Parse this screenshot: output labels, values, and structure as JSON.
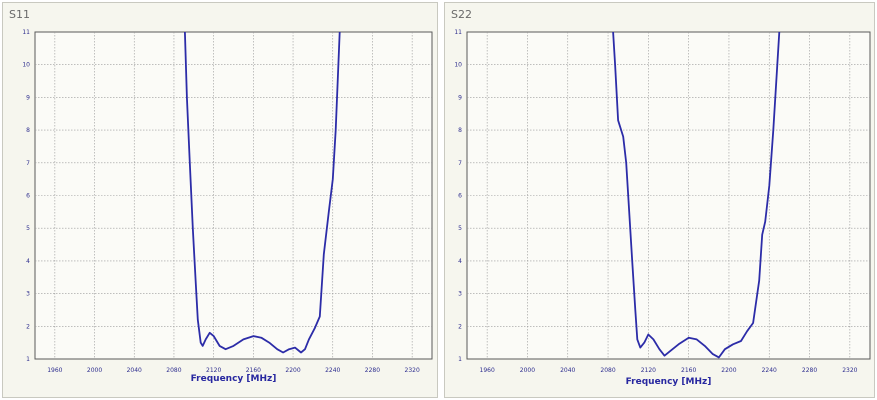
{
  "chart_data": [
    {
      "type": "line",
      "title": "S11",
      "xlabel": "Frequency [MHz]",
      "ylabel": "",
      "xlim": [
        1940,
        2340
      ],
      "ylim": [
        1,
        11
      ],
      "grid": true,
      "x_ticks": [
        "1960",
        "2000",
        "2040",
        "2080",
        "2120",
        "2160",
        "2200",
        "2240",
        "2280",
        "2320"
      ],
      "y_ticks": [
        "11",
        "10",
        "9",
        "8",
        "7",
        "6",
        "5",
        "4",
        "3",
        "2",
        "1"
      ],
      "line_color": "#2c2ca8",
      "series": [
        {
          "points": [
            [
              2091,
              11
            ],
            [
              2093,
              9
            ],
            [
              2096,
              7
            ],
            [
              2099,
              5
            ],
            [
              2102,
              3.3
            ],
            [
              2104,
              2.2
            ],
            [
              2107,
              1.5
            ],
            [
              2109,
              1.4
            ],
            [
              2112,
              1.6
            ],
            [
              2116,
              1.8
            ],
            [
              2120,
              1.7
            ],
            [
              2126,
              1.4
            ],
            [
              2132,
              1.3
            ],
            [
              2140,
              1.4
            ],
            [
              2150,
              1.6
            ],
            [
              2160,
              1.7
            ],
            [
              2168,
              1.65
            ],
            [
              2176,
              1.5
            ],
            [
              2184,
              1.3
            ],
            [
              2190,
              1.2
            ],
            [
              2196,
              1.3
            ],
            [
              2202,
              1.35
            ],
            [
              2208,
              1.2
            ],
            [
              2212,
              1.3
            ],
            [
              2216,
              1.6
            ],
            [
              2222,
              1.95
            ],
            [
              2227,
              2.3
            ],
            [
              2231,
              4.2
            ],
            [
              2236,
              5.5
            ],
            [
              2240,
              6.5
            ],
            [
              2243,
              8
            ],
            [
              2245,
              9.5
            ],
            [
              2247,
              11
            ]
          ]
        }
      ]
    },
    {
      "type": "line",
      "title": "S22",
      "xlabel": "Frequency [MHz]",
      "ylabel": "",
      "xlim": [
        1940,
        2340
      ],
      "ylim": [
        1,
        11
      ],
      "grid": true,
      "x_ticks": [
        "1960",
        "2000",
        "2040",
        "2080",
        "2120",
        "2160",
        "2200",
        "2240",
        "2280",
        "2320"
      ],
      "y_ticks": [
        "11",
        "10",
        "9",
        "8",
        "7",
        "6",
        "5",
        "4",
        "3",
        "2",
        "1"
      ],
      "line_color": "#2c2ca8",
      "series": [
        {
          "points": [
            [
              2085,
              11
            ],
            [
              2087,
              10
            ],
            [
              2090,
              8.3
            ],
            [
              2095,
              7.8
            ],
            [
              2098,
              7
            ],
            [
              2101,
              5.5
            ],
            [
              2104,
              4
            ],
            [
              2107,
              2.5
            ],
            [
              2109,
              1.6
            ],
            [
              2112,
              1.35
            ],
            [
              2116,
              1.5
            ],
            [
              2120,
              1.75
            ],
            [
              2125,
              1.6
            ],
            [
              2131,
              1.3
            ],
            [
              2136,
              1.1
            ],
            [
              2142,
              1.25
            ],
            [
              2150,
              1.45
            ],
            [
              2160,
              1.65
            ],
            [
              2168,
              1.6
            ],
            [
              2176,
              1.4
            ],
            [
              2184,
              1.15
            ],
            [
              2190,
              1.05
            ],
            [
              2196,
              1.3
            ],
            [
              2204,
              1.45
            ],
            [
              2212,
              1.55
            ],
            [
              2218,
              1.85
            ],
            [
              2224,
              2.1
            ],
            [
              2230,
              3.4
            ],
            [
              2233,
              4.8
            ],
            [
              2236,
              5.2
            ],
            [
              2240,
              6.3
            ],
            [
              2244,
              8
            ],
            [
              2248,
              10
            ],
            [
              2250,
              11
            ]
          ]
        }
      ]
    }
  ]
}
